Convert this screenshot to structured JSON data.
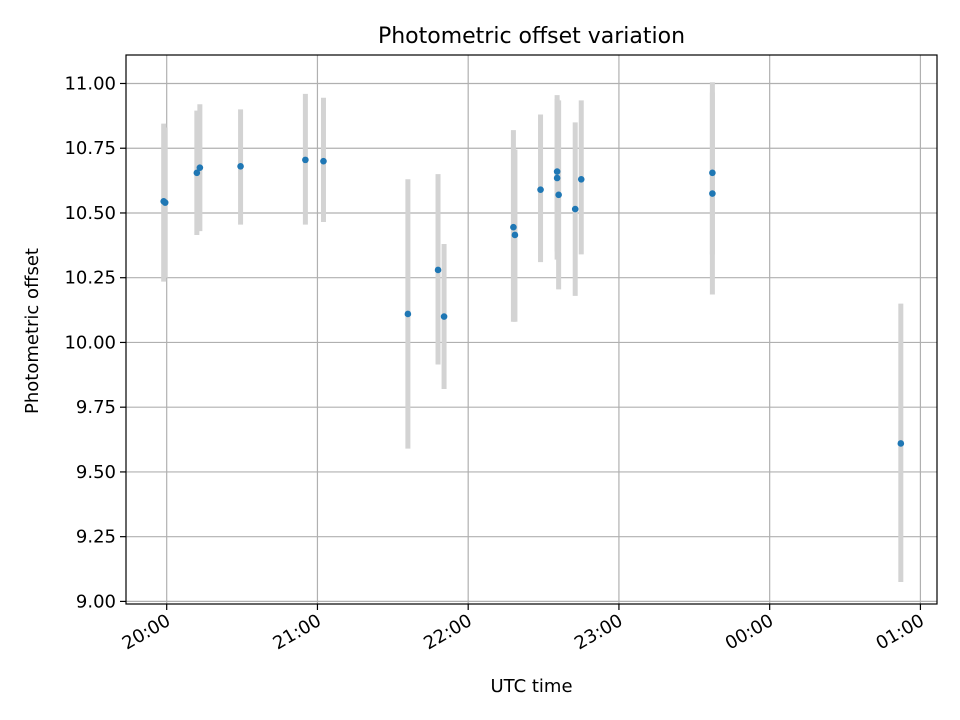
{
  "chart_data": {
    "type": "scatter",
    "title": "Photometric offset variation",
    "xlabel": "UTC time",
    "ylabel": "Photometric offset",
    "x_unit": "hours after 20:00 UTC",
    "xlim": [
      -0.27,
      5.11
    ],
    "ylim": [
      8.99,
      11.11
    ],
    "grid": true,
    "legend": "none",
    "x_ticks": [
      {
        "value": 0,
        "label": "20:00"
      },
      {
        "value": 1,
        "label": "21:00"
      },
      {
        "value": 2,
        "label": "22:00"
      },
      {
        "value": 3,
        "label": "23:00"
      },
      {
        "value": 4,
        "label": "00:00"
      },
      {
        "value": 5,
        "label": "01:00"
      }
    ],
    "y_ticks": [
      {
        "value": 9.0,
        "label": "9.00"
      },
      {
        "value": 9.25,
        "label": "9.25"
      },
      {
        "value": 9.5,
        "label": "9.50"
      },
      {
        "value": 9.75,
        "label": "9.75"
      },
      {
        "value": 10.0,
        "label": "10.00"
      },
      {
        "value": 10.25,
        "label": "10.25"
      },
      {
        "value": 10.5,
        "label": "10.50"
      },
      {
        "value": 10.75,
        "label": "10.75"
      },
      {
        "value": 11.0,
        "label": "11.00"
      }
    ],
    "colors": {
      "point": "#1f77b4",
      "errorbar": "#d3d3d3",
      "grid": "#b0b0b0",
      "axis": "#000000"
    },
    "points": [
      {
        "x": -0.02,
        "y": 10.545,
        "err_low": 10.235,
        "err_high": 10.845
      },
      {
        "x": -0.01,
        "y": 10.54,
        "err_low": 10.25,
        "err_high": 10.83
      },
      {
        "x": 0.2,
        "y": 10.655,
        "err_low": 10.415,
        "err_high": 10.895
      },
      {
        "x": 0.22,
        "y": 10.675,
        "err_low": 10.43,
        "err_high": 10.92
      },
      {
        "x": 0.49,
        "y": 10.68,
        "err_low": 10.455,
        "err_high": 10.9
      },
      {
        "x": 0.92,
        "y": 10.705,
        "err_low": 10.455,
        "err_high": 10.96
      },
      {
        "x": 1.04,
        "y": 10.7,
        "err_low": 10.465,
        "err_high": 10.945
      },
      {
        "x": 1.6,
        "y": 10.11,
        "err_low": 9.59,
        "err_high": 10.63
      },
      {
        "x": 1.8,
        "y": 10.28,
        "err_low": 9.915,
        "err_high": 10.65
      },
      {
        "x": 1.84,
        "y": 10.1,
        "err_low": 9.82,
        "err_high": 10.38
      },
      {
        "x": 2.3,
        "y": 10.445,
        "err_low": 10.08,
        "err_high": 10.82
      },
      {
        "x": 2.31,
        "y": 10.415,
        "err_low": 10.08,
        "err_high": 10.745
      },
      {
        "x": 2.48,
        "y": 10.59,
        "err_low": 10.31,
        "err_high": 10.88
      },
      {
        "x": 2.59,
        "y": 10.66,
        "err_low": 10.35,
        "err_high": 10.955
      },
      {
        "x": 2.59,
        "y": 10.635,
        "err_low": 10.32,
        "err_high": 10.94
      },
      {
        "x": 2.6,
        "y": 10.57,
        "err_low": 10.205,
        "err_high": 10.935
      },
      {
        "x": 2.71,
        "y": 10.515,
        "err_low": 10.18,
        "err_high": 10.85
      },
      {
        "x": 2.75,
        "y": 10.63,
        "err_low": 10.34,
        "err_high": 10.935
      },
      {
        "x": 3.62,
        "y": 10.655,
        "err_low": 10.34,
        "err_high": 11.005
      },
      {
        "x": 3.62,
        "y": 10.575,
        "err_low": 10.185,
        "err_high": 10.965
      },
      {
        "x": 4.87,
        "y": 9.61,
        "err_low": 9.075,
        "err_high": 10.15
      }
    ]
  }
}
